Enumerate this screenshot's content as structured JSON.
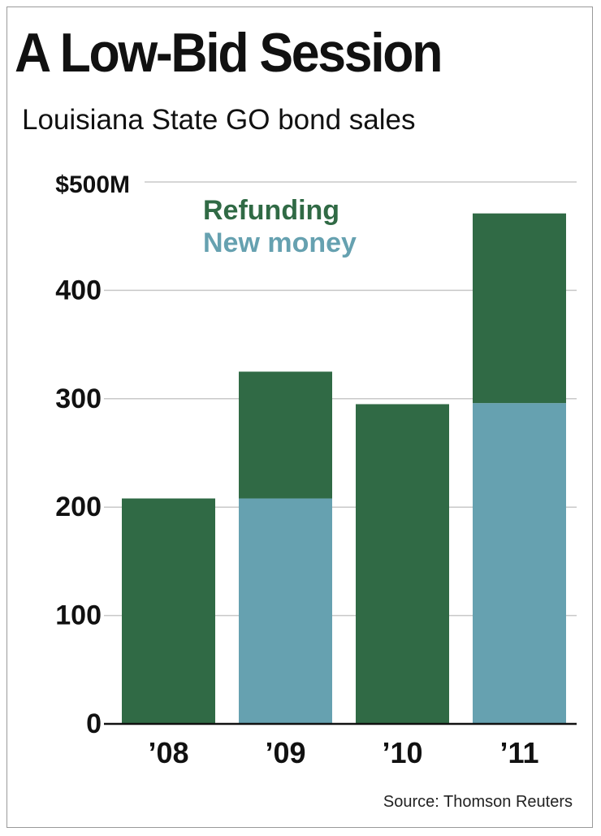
{
  "title": "A Low-Bid Session",
  "subtitle": "Louisiana State GO bond sales",
  "source": "Source: Thomson Reuters",
  "chart_data": {
    "type": "bar",
    "stacked": true,
    "categories": [
      "’08",
      "’09",
      "’10",
      "’11"
    ],
    "series": [
      {
        "name": "New money",
        "color": "#66a1b0",
        "values": [
          0,
          208,
          0,
          296
        ]
      },
      {
        "name": "Refunding",
        "color": "#306a45",
        "values": [
          208,
          117,
          295,
          175
        ]
      }
    ],
    "ylim": [
      0,
      500
    ],
    "yticks": [
      0,
      100,
      200,
      300,
      400,
      500
    ],
    "ytick_labels": [
      "0",
      "100",
      "200",
      "300",
      "400",
      "$500M"
    ],
    "legend": [
      {
        "label": "Refunding",
        "color": "#306a45"
      },
      {
        "label": "New money",
        "color": "#66a1b0"
      }
    ],
    "legend_position": "top-left",
    "grid": true
  }
}
